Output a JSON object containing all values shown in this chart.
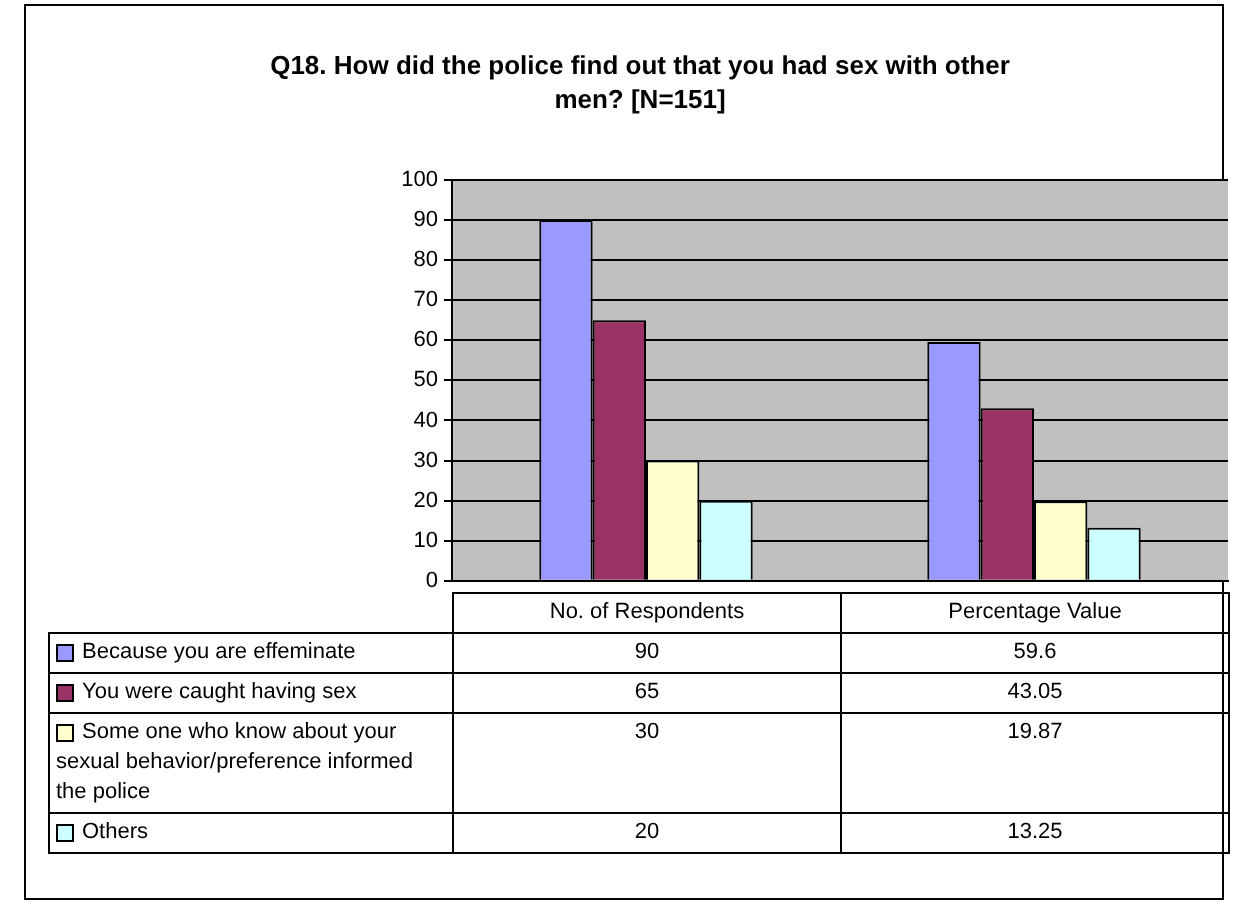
{
  "chart_data": {
    "type": "bar",
    "title": "Q18. How did the police find out that you had sex with other men? [N=151]",
    "categories": [
      "No. of Respondents",
      "Percentage Value"
    ],
    "series": [
      {
        "name": "Because you are effeminate",
        "color": "#9999ff",
        "values": [
          90,
          59.6
        ]
      },
      {
        "name": "You were caught having sex",
        "color": "#993366",
        "values": [
          65,
          43.05
        ]
      },
      {
        "name": "Some one who know about your sexual behavior/preference informed the police",
        "color": "#ffffcc",
        "values": [
          30,
          19.87
        ]
      },
      {
        "name": "Others",
        "color": "#ccffff",
        "values": [
          20,
          13.25
        ]
      }
    ],
    "ylim": [
      0,
      100
    ],
    "yticks": [
      0,
      10,
      20,
      30,
      40,
      50,
      60,
      70,
      80,
      90,
      100
    ],
    "grid": "y",
    "legend": "bottom",
    "data_labels": true
  }
}
